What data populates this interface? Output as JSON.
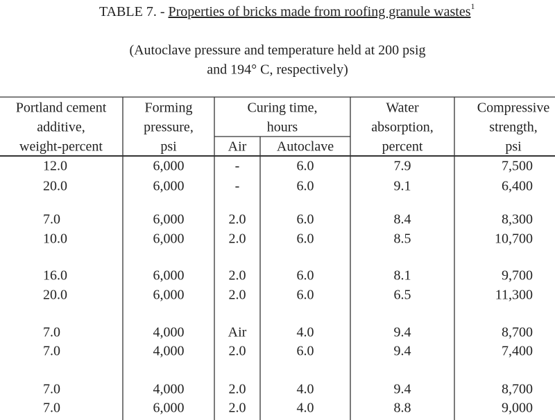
{
  "title": {
    "label": "TABLE 7. - ",
    "text": "Properties of bricks made from roofing granule wastes",
    "footnote": "1"
  },
  "subtitle": [
    "(Autoclave pressure and temperature held at 200 psig",
    "and 194° C, respectively)"
  ],
  "table": {
    "headers": [
      {
        "lines": [
          "Portland cement",
          "additive,",
          "weight-percent"
        ]
      },
      {
        "lines": [
          "Forming",
          "pressure,",
          "psi"
        ]
      },
      {
        "lines": [
          "Curing time,",
          "hours"
        ],
        "sub": [
          "Air",
          "Autoclave"
        ]
      },
      {
        "lines": [
          "Water",
          "absorption,",
          "percent"
        ]
      },
      {
        "lines": [
          "Compressive",
          "strength,",
          "psi"
        ]
      }
    ],
    "rows": [
      [
        "12.0",
        "6,000",
        "-",
        "6.0",
        "7.9",
        "7,500"
      ],
      [
        "20.0",
        "6,000",
        "-",
        "6.0",
        "9.1",
        "6,400"
      ],
      [
        "7.0",
        "6,000",
        "2.0",
        "6.0",
        "8.4",
        "8,300"
      ],
      [
        "10.0",
        "6,000",
        "2.0",
        "6.0",
        "8.5",
        "10,700"
      ],
      [
        "16.0",
        "6,000",
        "2.0",
        "6.0",
        "8.1",
        "9,700"
      ],
      [
        "20.0",
        "6,000",
        "2.0",
        "6.0",
        "6.5",
        "11,300"
      ],
      [
        "7.0",
        "4,000",
        "Air",
        "4.0",
        "9.4",
        "8,700"
      ],
      [
        "7.0",
        "4,000",
        "2.0",
        "6.0",
        "9.4",
        "7,400"
      ],
      [
        "7.0",
        "4,000",
        "2.0",
        "4.0",
        "9.4",
        "8,700"
      ],
      [
        "7.0",
        "6,000",
        "2.0",
        "4.0",
        "8.8",
        "9,000"
      ]
    ]
  }
}
